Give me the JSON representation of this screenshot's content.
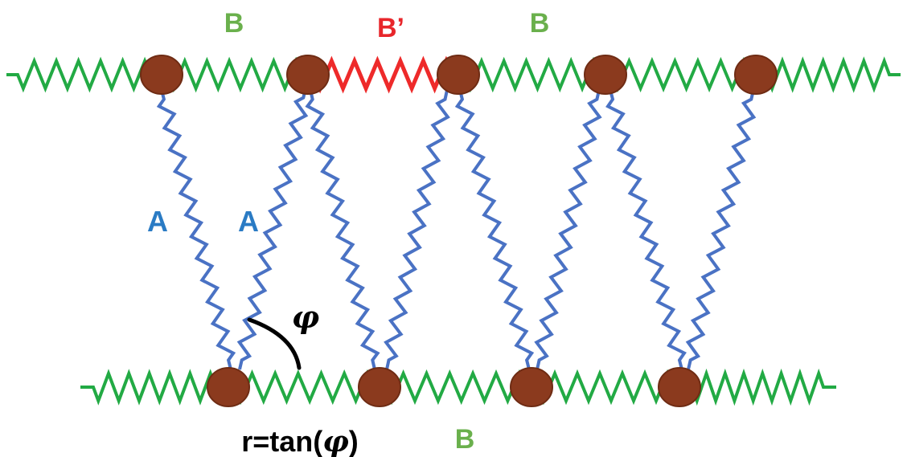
{
  "labels": {
    "b_top_left": "B",
    "b_prime": "B’",
    "b_top_right": "B",
    "a_left": "A",
    "a_right": "A",
    "phi": "φ",
    "formula_prefix": "r=tan(",
    "formula_phi": "φ",
    "formula_suffix": ")",
    "b_bottom": "B"
  },
  "colors": {
    "spring_b": "#22aa44",
    "spring_b_prime": "#ee2a2a",
    "spring_a": "#4a72c4",
    "bead": "#8b3a1e",
    "bead_stroke": "#6f2c14",
    "label_b": "#6ab04c",
    "label_b_prime": "#e8262b",
    "label_a": "#2a7bc4",
    "angle_arc": "#000000",
    "text": "#000000"
  }
}
